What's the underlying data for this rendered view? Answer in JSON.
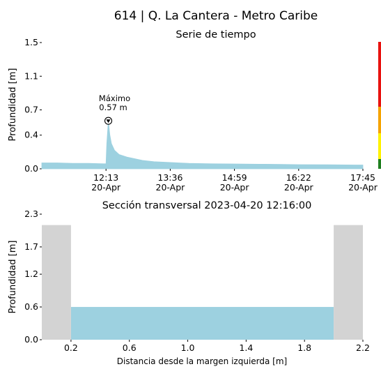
{
  "figure": {
    "title": "614 | Q. La Cantera - Metro Caribe"
  },
  "colors": {
    "fill": "#9dd1e0",
    "bank": "#d3d3d3",
    "level_red": "#e8120f",
    "level_orange": "#f5a300",
    "level_yellow": "#fff200",
    "level_green": "#1f7f1f"
  },
  "chart_data": [
    {
      "type": "area",
      "title": "Serie de tiempo",
      "ylabel": "Profundidad [m]",
      "xlabel": "",
      "ylim": [
        0,
        1.5
      ],
      "yticks": [
        "0.0",
        "0.4",
        "0.7",
        "1.1",
        "1.5"
      ],
      "xlim_minutes": [
        650,
        1065
      ],
      "xticks": [
        {
          "line1": "12:13",
          "line2": "20-Apr"
        },
        {
          "line1": "13:36",
          "line2": "20-Apr"
        },
        {
          "line1": "14:59",
          "line2": "20-Apr"
        },
        {
          "line1": "16:22",
          "line2": "20-Apr"
        },
        {
          "line1": "17:45",
          "line2": "20-Apr"
        }
      ],
      "series": [
        {
          "x": [
            "10:50",
            "11:10",
            "11:30",
            "11:50",
            "12:10",
            "12:13",
            "12:14",
            "12:16",
            "12:18",
            "12:20",
            "12:24",
            "12:30",
            "12:40",
            "12:50",
            "13:00",
            "13:15",
            "13:36",
            "14:00",
            "14:30",
            "14:59",
            "15:30",
            "16:00",
            "16:22",
            "17:00",
            "17:45"
          ],
          "values": [
            0.07,
            0.07,
            0.065,
            0.065,
            0.06,
            0.06,
            0.3,
            0.57,
            0.4,
            0.3,
            0.22,
            0.17,
            0.14,
            0.12,
            0.1,
            0.085,
            0.075,
            0.065,
            0.06,
            0.058,
            0.055,
            0.053,
            0.05,
            0.048,
            0.045
          ]
        }
      ],
      "annotation": {
        "label": "Máximo",
        "value_text": "0.57 m",
        "x": "12:16",
        "y": 0.57
      },
      "grid": false
    },
    {
      "type": "area",
      "title": "Sección transversal 2023-04-20 12:16:00",
      "ylabel": "Profundidad [m]",
      "xlabel": "Distancia desde la margen izquierda [m]",
      "ylim": [
        0,
        2.3
      ],
      "yticks": [
        "0.0",
        "0.6",
        "1.2",
        "1.7",
        "2.3"
      ],
      "xlim": [
        0,
        2.2
      ],
      "xticks": [
        "0.2",
        "0.6",
        "1.0",
        "1.4",
        "1.8",
        "2.2"
      ],
      "banks": [
        {
          "x_start": 0.0,
          "x_end": 0.2,
          "top": 2.1
        },
        {
          "x_start": 2.0,
          "x_end": 2.2,
          "top": 2.1
        }
      ],
      "water_level": 0.6,
      "grid": false
    }
  ]
}
